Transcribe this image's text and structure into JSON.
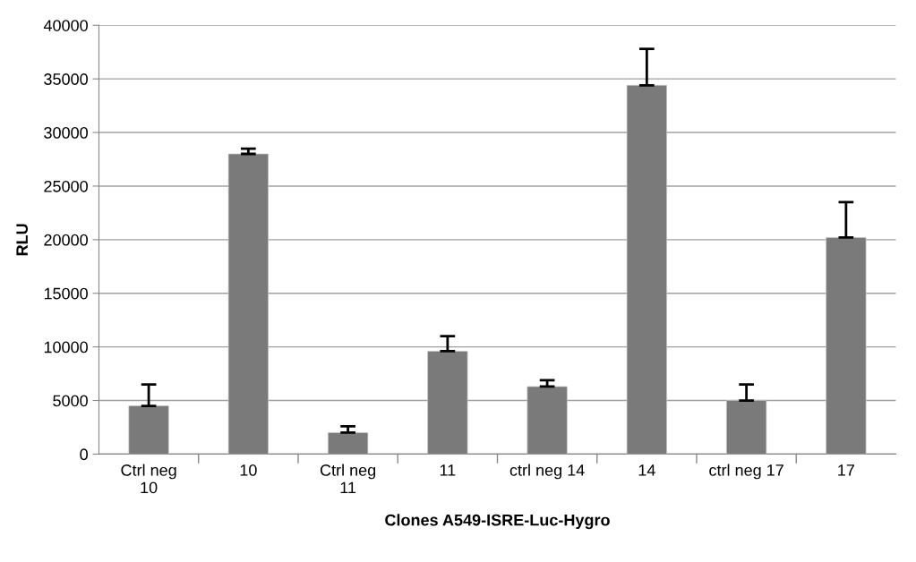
{
  "chart_data": {
    "type": "bar",
    "xlabel": "Clones A549-ISRE-Luc-Hygro",
    "ylabel": "RLU",
    "categories": [
      "Ctrl neg\n10",
      "10",
      "Ctrl neg\n11",
      "11",
      "ctrl neg 14",
      "14",
      "ctrl neg 17",
      "17"
    ],
    "values": [
      4500,
      28000,
      2000,
      9600,
      6300,
      34400,
      5000,
      20200
    ],
    "errors": [
      [
        4500,
        6500
      ],
      [
        28000,
        28500
      ],
      [
        2000,
        2600
      ],
      [
        9600,
        11000
      ],
      [
        6300,
        6900
      ],
      [
        34400,
        37800
      ],
      [
        5000,
        6500
      ],
      [
        20200,
        23500
      ]
    ],
    "color": "#7a7a7a",
    "ylim": [
      0,
      40000
    ],
    "yticks": [
      0,
      5000,
      10000,
      15000,
      20000,
      25000,
      30000,
      35000,
      40000
    ],
    "grid": "y",
    "legend": false
  }
}
